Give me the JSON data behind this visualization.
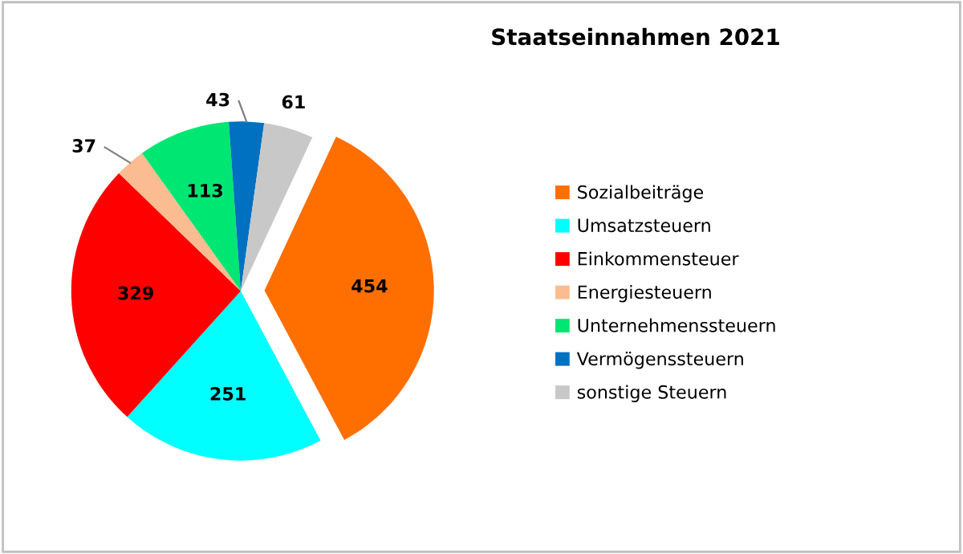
{
  "chart_data": {
    "type": "pie",
    "title": "Staatseinnahmen 2021",
    "categories": [
      "Sozialbeiträge",
      "Umsatzsteuern",
      "Einkommensteuer",
      "Energiesteuern",
      "Unternehmenssteuern",
      "Vermögenssteuern",
      "sonstige Steuern"
    ],
    "values": [
      454,
      251,
      329,
      37,
      113,
      43,
      61
    ],
    "colors": [
      "#ff6f00",
      "#00ffff",
      "#ff0000",
      "#fbbc91",
      "#00e673",
      "#0070c0",
      "#c8c8c8"
    ],
    "data_labels": true,
    "legend": "right"
  }
}
